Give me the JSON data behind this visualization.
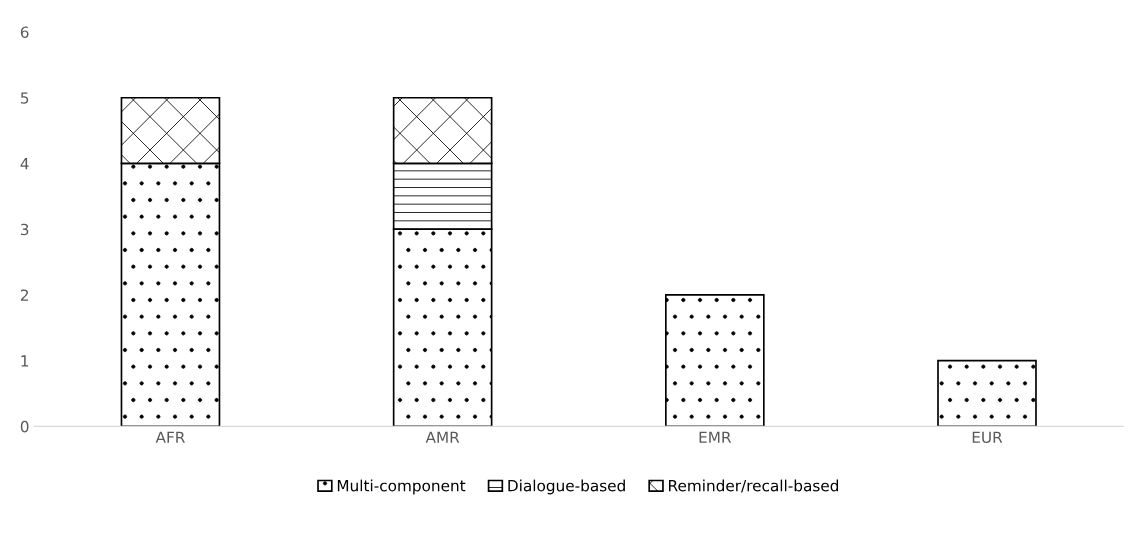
{
  "chart_data": {
    "type": "bar",
    "stacked": true,
    "categories": [
      "AFR",
      "AMR",
      "EMR",
      "EUR"
    ],
    "series": [
      {
        "name": "Multi-component",
        "color": "#ffffff",
        "values": [
          4,
          3,
          2,
          1
        ]
      },
      {
        "name": "Dialogue-based",
        "color": "#ffffff",
        "values": [
          null,
          1,
          null,
          null
        ]
      },
      {
        "name": "Reminder/recall-based",
        "color": "#ffffff",
        "values": [
          1,
          1,
          null,
          null
        ]
      }
    ],
    "ylim": [
      0,
      6
    ],
    "yticks": [
      0,
      1,
      2,
      3,
      4,
      5,
      6
    ],
    "grid": false,
    "legend": "bottom"
  }
}
